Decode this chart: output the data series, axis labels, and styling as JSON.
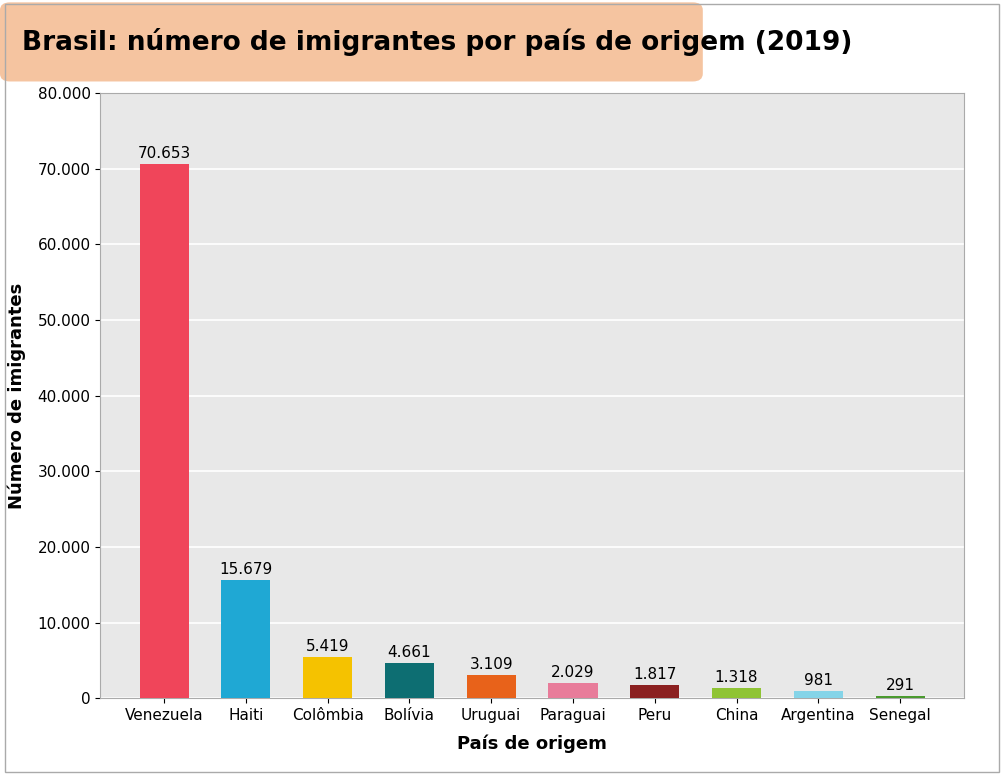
{
  "title": "Brasil: número de imigrantes por país de origem (2019)",
  "xlabel": "País de origem",
  "ylabel": "Número de imigrantes",
  "categories": [
    "Venezuela",
    "Haiti",
    "Colômbia",
    "Bolívia",
    "Uruguai",
    "Paraguai",
    "Peru",
    "China",
    "Argentina",
    "Senegal"
  ],
  "values": [
    70653,
    15679,
    5419,
    4661,
    3109,
    2029,
    1817,
    1318,
    981,
    291
  ],
  "bar_colors": [
    "#f0455a",
    "#1fa8d4",
    "#f5c200",
    "#0d6e72",
    "#e8621a",
    "#e87c9a",
    "#8b2020",
    "#8fc434",
    "#85d4e8",
    "#4a9a2e"
  ],
  "label_values": [
    "70.653",
    "15.679",
    "5.419",
    "4.661",
    "3.109",
    "2.029",
    "1.817",
    "1.318",
    "981",
    "291"
  ],
  "ylim": [
    0,
    80000
  ],
  "yticks": [
    0,
    10000,
    20000,
    30000,
    40000,
    50000,
    60000,
    70000,
    80000
  ],
  "ytick_labels": [
    "0",
    "10.000",
    "20.000",
    "30.000",
    "40.000",
    "50.000",
    "60.000",
    "70.000",
    "80.000"
  ],
  "title_bg_color": "#f5c4a0",
  "plot_bg_color": "#e8e8e8",
  "outer_bg_color": "#ffffff",
  "frame_color": "#aaaaaa",
  "grid_color": "#ffffff",
  "title_fontsize": 19,
  "axis_label_fontsize": 13,
  "tick_fontsize": 11,
  "bar_label_fontsize": 11
}
